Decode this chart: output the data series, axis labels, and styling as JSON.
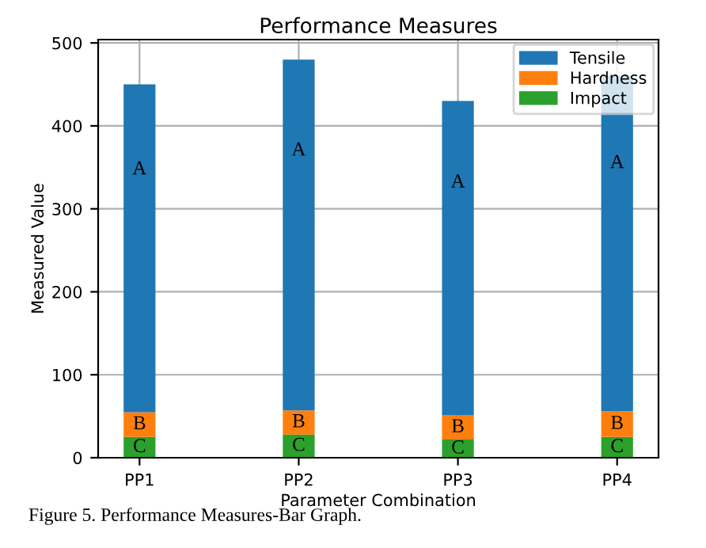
{
  "chart_data": {
    "type": "bar",
    "title": "Performance Measures",
    "xlabel": "Parameter Combination",
    "ylabel": "Measured Value",
    "categories": [
      "PP1",
      "PP2",
      "PP3",
      "PP4"
    ],
    "stacked": true,
    "series": [
      {
        "name": "Impact",
        "color": "#2ca02c",
        "values": [
          25,
          28,
          22,
          25
        ],
        "value_labels": [
          "C",
          "C",
          "C",
          "C"
        ]
      },
      {
        "name": "Hardness",
        "color": "#ff7f0e",
        "values": [
          30,
          29,
          29,
          31
        ],
        "value_labels": [
          "B",
          "B",
          "B",
          "B"
        ]
      },
      {
        "name": "Tensile",
        "color": "#1f77b4",
        "values": [
          395,
          423,
          379,
          404
        ],
        "value_labels": [
          "A",
          "A",
          "A",
          "A"
        ]
      }
    ],
    "ylim": [
      0,
      504
    ],
    "yticks": [
      0,
      100,
      200,
      300,
      400,
      500
    ],
    "grid": true,
    "legend": "top right",
    "annotations": [
      "Figure 5. Performance Measures-Bar Graph."
    ]
  }
}
